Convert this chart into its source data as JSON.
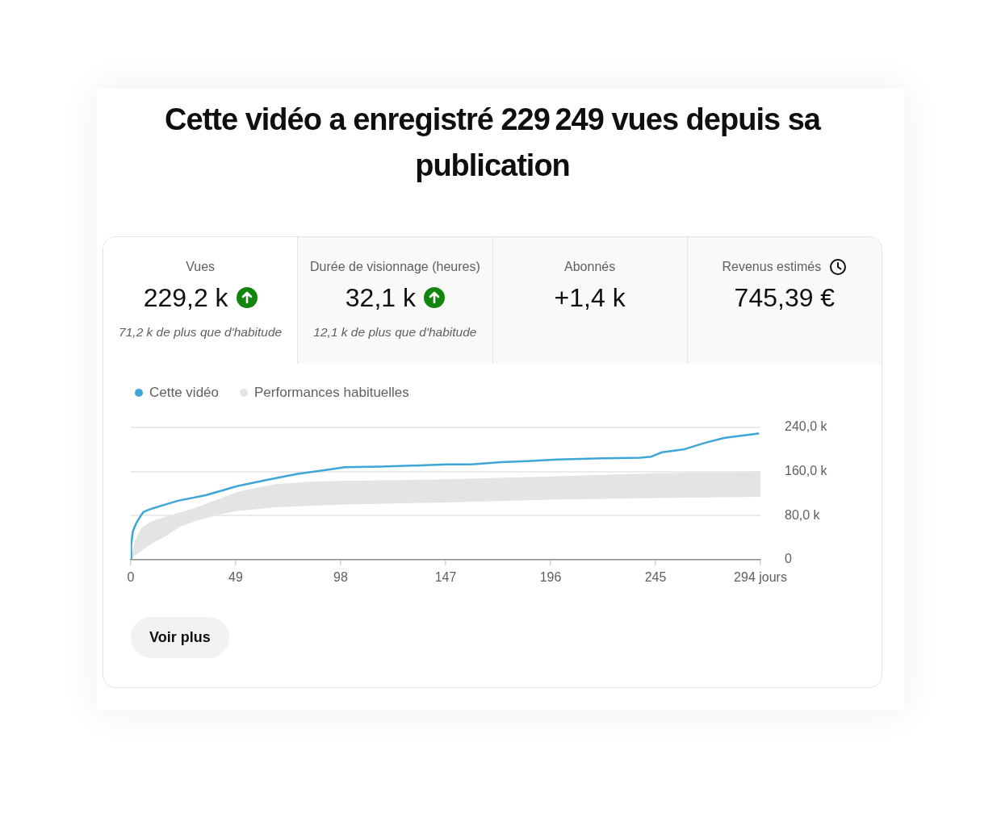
{
  "chart_data": [
    {
      "type": "other",
      "title": "Vues",
      "subtitle": "229,2 k",
      "annotations": [
        "71,2 k de plus que d'habitude"
      ]
    },
    {
      "type": "other",
      "title": "Durée de visionnage (heures)",
      "subtitle": "32,1 k",
      "annotations": [
        "12,1 k de plus que d'habitude"
      ]
    },
    {
      "type": "other",
      "title": "Abonnés",
      "subtitle": "+1,4 k"
    },
    {
      "type": "other",
      "title": "Revenus estimés",
      "subtitle": "745,39 €"
    },
    {
      "type": "line",
      "title": "Cette vidéo a enregistré 229 249 vues depuis sa publication",
      "series": [
        {
          "name": "Cette vidéo",
          "color": "#3ea6d6",
          "x": [
            0,
            0.2,
            1,
            2.5,
            4.5,
            6,
            10,
            16,
            22,
            35,
            50,
            65,
            78,
            93,
            100,
            117,
            133,
            148,
            159,
            173,
            185,
            199,
            220,
            238,
            243,
            248,
            258,
            268,
            277,
            285,
            293
          ],
          "values": [
            0,
            28,
            52,
            66,
            79,
            87,
            93,
            100,
            107,
            117,
            134,
            146,
            156,
            164,
            168,
            169,
            171,
            173,
            173,
            177,
            179,
            182,
            184,
            185,
            187,
            195,
            200,
            212,
            221,
            225,
            229
          ]
        },
        {
          "name": "Performances habituelles",
          "type": "area",
          "color": "#e4e4e4",
          "x": [
            0,
            2,
            5,
            10,
            16,
            23,
            30,
            41,
            49,
            54,
            67,
            85,
            98,
            147,
            196,
            245,
            294
          ],
          "values": [
            null,
            null,
            null,
            null,
            null,
            null,
            null,
            null,
            null,
            null,
            null,
            null,
            null,
            null,
            null,
            null,
            null
          ],
          "lower": [
            0,
            8,
            16,
            30,
            42,
            60,
            70,
            82,
            88,
            90,
            95,
            98,
            100,
            104,
            109,
            112,
            114
          ],
          "upper": [
            0,
            35,
            58,
            70,
            78,
            86,
            94,
            110,
            122,
            127,
            137,
            142,
            143,
            146,
            151,
            157,
            160
          ]
        }
      ],
      "xlim": [
        0,
        294
      ],
      "xticks": [
        0,
        49,
        98,
        147,
        196,
        245,
        {
          "value": 294,
          "label": "294 jours"
        }
      ],
      "ylim": [
        0,
        240
      ],
      "yticks": [
        0,
        {
          "value": 80,
          "label": "80,0 k"
        },
        {
          "value": 160,
          "label": "160,0 k"
        },
        {
          "value": 240,
          "label": "240,0 k"
        }
      ],
      "grid": "y",
      "legend": "top left",
      "marker": "none",
      "annotations": [
        "Voir plus"
      ]
    }
  ]
}
